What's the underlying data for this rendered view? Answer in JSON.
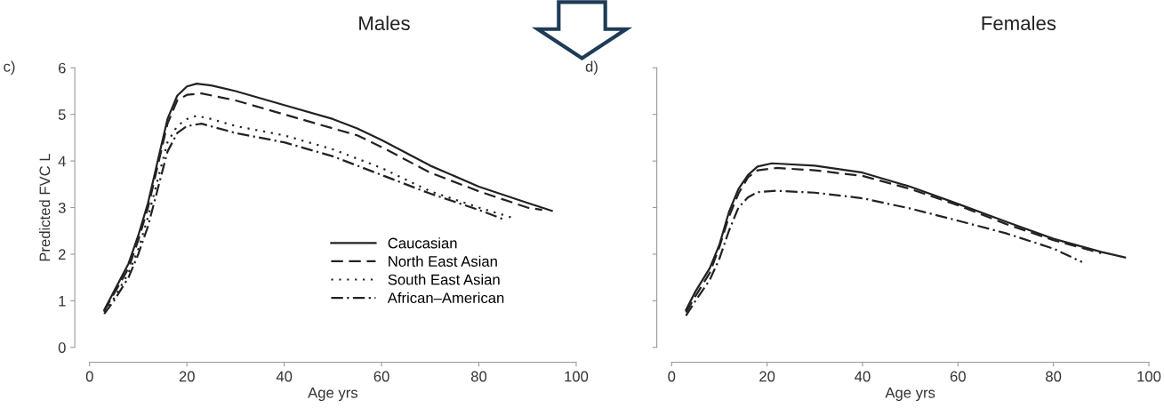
{
  "chart_data": [
    {
      "type": "line",
      "title": "Males",
      "annotations": [
        "c)"
      ],
      "xlabel": "Age yrs",
      "ylabel": "Predicted FVC L",
      "xlim": [
        0,
        100
      ],
      "xticks": [
        0,
        20,
        40,
        60,
        80,
        100
      ],
      "ylim": [
        0,
        6
      ],
      "yticks": [
        0,
        1,
        2,
        3,
        4,
        5,
        6
      ],
      "grid": false,
      "legend": "bottom right",
      "marker": "none",
      "series": [
        {
          "name": "Caucasian",
          "color": "#222222",
          "line_style": "solid",
          "x": [
            3,
            5,
            8,
            10,
            12,
            14,
            16,
            18,
            20,
            22,
            25,
            30,
            40,
            50,
            55,
            60,
            70,
            80,
            90,
            95
          ],
          "values": [
            0.8,
            1.2,
            1.8,
            2.4,
            3.1,
            4.0,
            4.9,
            5.4,
            5.6,
            5.66,
            5.62,
            5.5,
            5.2,
            4.9,
            4.7,
            4.45,
            3.9,
            3.45,
            3.1,
            2.93
          ]
        },
        {
          "name": "North East Asian",
          "color": "#222222",
          "line_style": "dashed",
          "x": [
            3,
            5,
            8,
            10,
            12,
            14,
            16,
            18,
            20,
            23,
            30,
            40,
            50,
            55,
            60,
            70,
            80,
            90,
            93
          ],
          "values": [
            0.78,
            1.15,
            1.7,
            2.3,
            3.0,
            3.9,
            4.8,
            5.3,
            5.42,
            5.45,
            5.3,
            5.0,
            4.7,
            4.55,
            4.3,
            3.75,
            3.35,
            3.0,
            2.95
          ]
        },
        {
          "name": "South East Asian",
          "color": "#222222",
          "line_style": "dotted",
          "x": [
            3,
            5,
            8,
            10,
            12,
            14,
            16,
            18,
            20,
            22,
            25,
            30,
            40,
            50,
            60,
            70,
            80,
            87
          ],
          "values": [
            0.75,
            1.05,
            1.6,
            2.1,
            2.8,
            3.6,
            4.4,
            4.75,
            4.9,
            4.97,
            4.9,
            4.75,
            4.55,
            4.25,
            3.85,
            3.35,
            3.0,
            2.78
          ]
        },
        {
          "name": "African–American",
          "color": "#222222",
          "line_style": "dashdot",
          "x": [
            3,
            5,
            8,
            10,
            12,
            14,
            16,
            18,
            20,
            23,
            30,
            40,
            50,
            60,
            70,
            80,
            85
          ],
          "values": [
            0.72,
            1.0,
            1.5,
            2.0,
            2.6,
            3.4,
            4.2,
            4.6,
            4.75,
            4.8,
            4.6,
            4.4,
            4.1,
            3.7,
            3.3,
            2.95,
            2.75
          ]
        }
      ]
    },
    {
      "type": "line",
      "title": "Females",
      "annotations": [
        "d)"
      ],
      "xlabel": "Age yrs",
      "xlim": [
        0,
        100
      ],
      "xticks": [
        0,
        20,
        40,
        60,
        80,
        100
      ],
      "ylim": [
        0,
        6
      ],
      "yticks": [
        {
          "value": 0,
          "label": null
        },
        {
          "value": 1,
          "label": null
        },
        {
          "value": 2,
          "label": null
        },
        {
          "value": 3,
          "label": null
        },
        {
          "value": 4,
          "label": null
        },
        {
          "value": 5,
          "label": null
        },
        {
          "value": 6,
          "label": null
        }
      ],
      "tick_labels": "x",
      "grid": false,
      "marker": "none",
      "series": [
        {
          "color": "#222222",
          "line_style": "solid",
          "x": [
            3,
            5,
            8,
            10,
            12,
            14,
            16,
            18,
            21,
            30,
            40,
            50,
            60,
            70,
            80,
            90,
            95
          ],
          "values": [
            0.8,
            1.2,
            1.7,
            2.2,
            2.9,
            3.4,
            3.7,
            3.88,
            3.95,
            3.9,
            3.75,
            3.45,
            3.08,
            2.7,
            2.33,
            2.05,
            1.93
          ]
        },
        {
          "color": "#222222",
          "line_style": "dashed",
          "x": [
            3,
            5,
            8,
            10,
            12,
            14,
            16,
            18,
            22,
            30,
            40,
            50,
            60,
            70,
            80,
            90
          ],
          "values": [
            0.75,
            1.1,
            1.6,
            2.15,
            2.8,
            3.3,
            3.65,
            3.8,
            3.85,
            3.8,
            3.68,
            3.4,
            3.05,
            2.65,
            2.3,
            2.02
          ]
        },
        {
          "color": "#222222",
          "line_style": "dashdot",
          "x": [
            3,
            5,
            8,
            10,
            12,
            14,
            16,
            18,
            22,
            30,
            40,
            50,
            60,
            70,
            80,
            86
          ],
          "values": [
            0.68,
            1.0,
            1.45,
            1.9,
            2.5,
            3.0,
            3.22,
            3.33,
            3.36,
            3.32,
            3.2,
            2.98,
            2.72,
            2.45,
            2.12,
            1.83
          ]
        }
      ]
    }
  ]
}
